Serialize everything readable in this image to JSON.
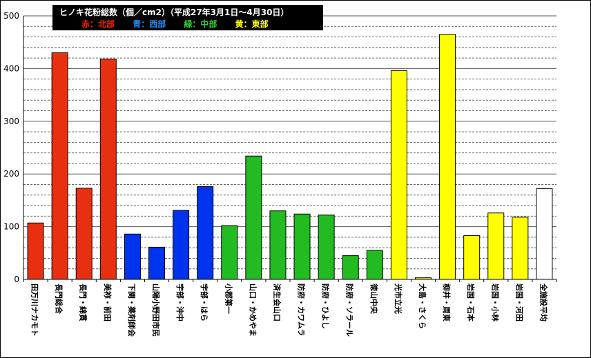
{
  "chart_data": {
    "type": "bar",
    "title": "ヒノキ花粉総数（個／cm2）（平成27年3月1日～4月30日）",
    "legend": [
      {
        "label": "赤：北部",
        "color": "#ff2200"
      },
      {
        "label": "青：西部",
        "color": "#1e90ff"
      },
      {
        "label": "緑：中部",
        "color": "#33cc33"
      },
      {
        "label": "黄：東部",
        "color": "#ffff00"
      }
    ],
    "ylim": [
      0,
      500
    ],
    "yticks": [
      0,
      100,
      200,
      300,
      400,
      500
    ],
    "grid": true,
    "categories": [
      "田万川ナカモト",
      "長門総合",
      "長門・綿貫",
      "美祢・前田",
      "下関・薬剤師会",
      "山陽小野田市民",
      "宇部・沖中",
      "宇部・はら",
      "小郡第一",
      "山口・かめやま",
      "済生会山口",
      "防府・カワムラ",
      "防府・ひよし",
      "防府・ソラール",
      "徳山中央",
      "光市立光",
      "大島・さくら",
      "柳井・周東",
      "岩国・石本",
      "岩国・小林",
      "岩国・河田",
      "全施設平均"
    ],
    "values": [
      107,
      430,
      173,
      418,
      86,
      61,
      131,
      176,
      102,
      234,
      130,
      124,
      122,
      45,
      55,
      396,
      3,
      465,
      83,
      126,
      118,
      172
    ],
    "colors": [
      "#e83010",
      "#e83010",
      "#e83010",
      "#e83010",
      "#0033ee",
      "#0033ee",
      "#0033ee",
      "#0033ee",
      "#22bb22",
      "#22bb22",
      "#22bb22",
      "#22bb22",
      "#22bb22",
      "#22bb22",
      "#22bb22",
      "#ffff00",
      "#ffff00",
      "#ffff00",
      "#ffff00",
      "#ffff00",
      "#ffff00",
      "#ffffff"
    ]
  }
}
